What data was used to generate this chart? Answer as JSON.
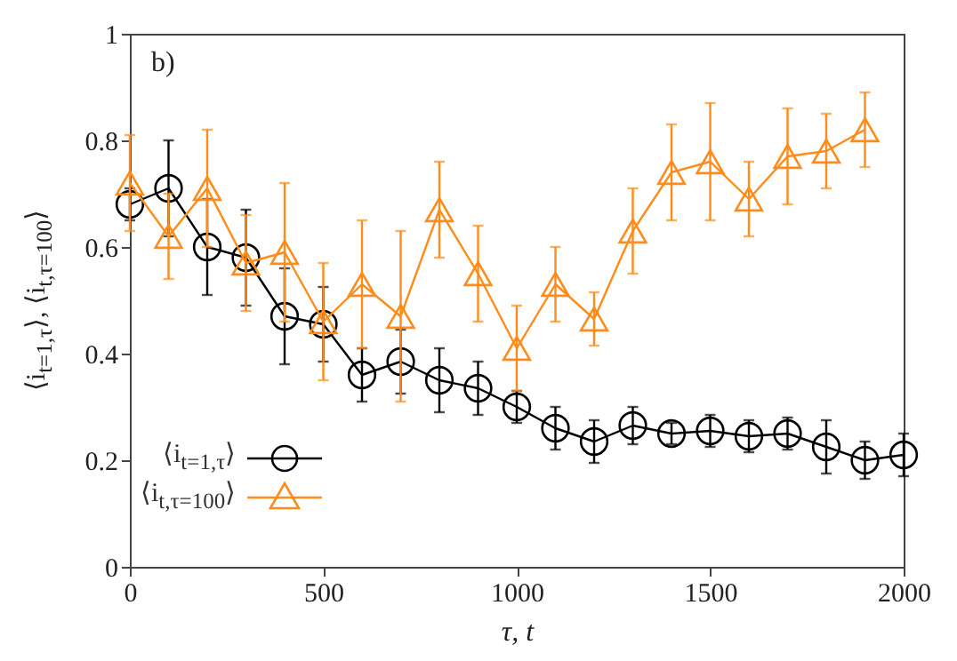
{
  "chart_data": {
    "type": "line",
    "xlabel": "τ, t",
    "ylabel": "⟨i$_{t=1,τ}$⟩, ⟨i$_{t,τ=100}$⟩",
    "annotations": [
      "b)"
    ],
    "x": [
      0,
      100,
      200,
      300,
      400,
      500,
      600,
      700,
      800,
      900,
      1000,
      1100,
      1200,
      1300,
      1400,
      1500,
      1600,
      1700,
      1800,
      1900,
      2000
    ],
    "series": [
      {
        "name": "⟨i$_{t=1,τ}$⟩",
        "color": "#000000",
        "marker": "circle",
        "values": [
          0.68,
          0.71,
          0.6,
          0.58,
          0.47,
          0.455,
          0.36,
          0.385,
          0.35,
          0.335,
          0.3,
          0.26,
          0.235,
          0.265,
          0.25,
          0.255,
          0.245,
          0.25,
          0.225,
          0.2,
          0.21
        ],
        "errors": [
          0.03,
          0.09,
          0.09,
          0.09,
          0.09,
          0.07,
          0.05,
          0.06,
          0.06,
          0.05,
          0.03,
          0.04,
          0.04,
          0.035,
          0.02,
          0.03,
          0.03,
          0.03,
          0.05,
          0.035,
          0.04
        ]
      },
      {
        "name": "⟨i$_{t,τ=100}$⟩",
        "color": "#ff8c1a",
        "marker": "triangle",
        "x": [
          0,
          100,
          200,
          300,
          400,
          500,
          600,
          700,
          800,
          900,
          1000,
          1100,
          1200,
          1300,
          1400,
          1500,
          1600,
          1700,
          1800,
          1900
        ],
        "values": [
          0.72,
          0.62,
          0.71,
          0.57,
          0.59,
          0.46,
          0.53,
          0.47,
          0.67,
          0.55,
          0.41,
          0.53,
          0.465,
          0.63,
          0.74,
          0.76,
          0.69,
          0.77,
          0.78,
          0.82
        ],
        "errors": [
          0.09,
          0.08,
          0.11,
          0.09,
          0.13,
          0.11,
          0.12,
          0.16,
          0.09,
          0.09,
          0.08,
          0.07,
          0.05,
          0.08,
          0.09,
          0.11,
          0.07,
          0.09,
          0.07,
          0.07
        ]
      }
    ],
    "xlim": [
      0,
      2000
    ],
    "xticks": [
      0,
      500,
      1000,
      1500,
      2000
    ],
    "ylim": [
      0,
      1
    ],
    "yticks": [
      0,
      0.2,
      0.4,
      0.6,
      0.8,
      1
    ],
    "legend": "bottom left",
    "line_style": "solid"
  }
}
